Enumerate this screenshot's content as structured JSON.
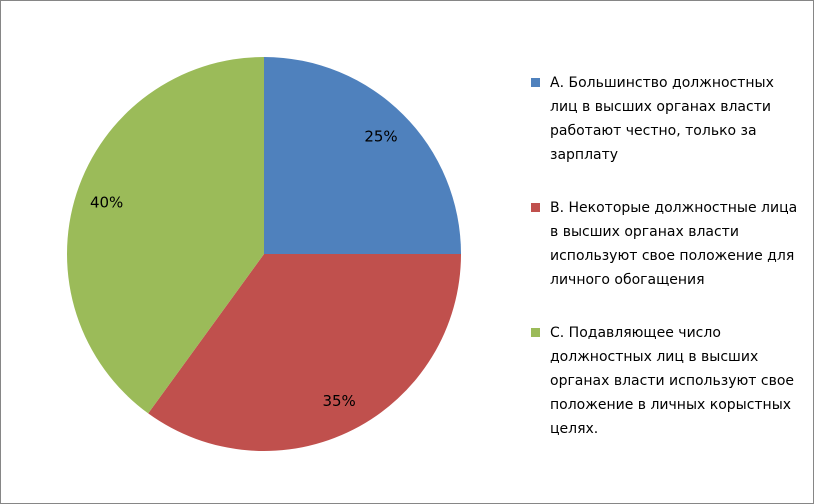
{
  "chart_data": {
    "type": "pie",
    "categories": [
      "А.  Большинство должностных лиц в высших органах власти работают честно, только за зарплату",
      "В.  Некоторые должностные лица в высших органах власти используют свое положение для личного обогащения",
      "С.  Подавляющее число должностных лиц в высших органах власти используют свое положение в личных корыстных целях."
    ],
    "values": [
      25,
      35,
      40
    ],
    "value_labels": [
      "25%",
      "35%",
      "40%"
    ],
    "colors": [
      "#4f81bd",
      "#c0504d",
      "#9bbb59"
    ],
    "legend": "right"
  }
}
